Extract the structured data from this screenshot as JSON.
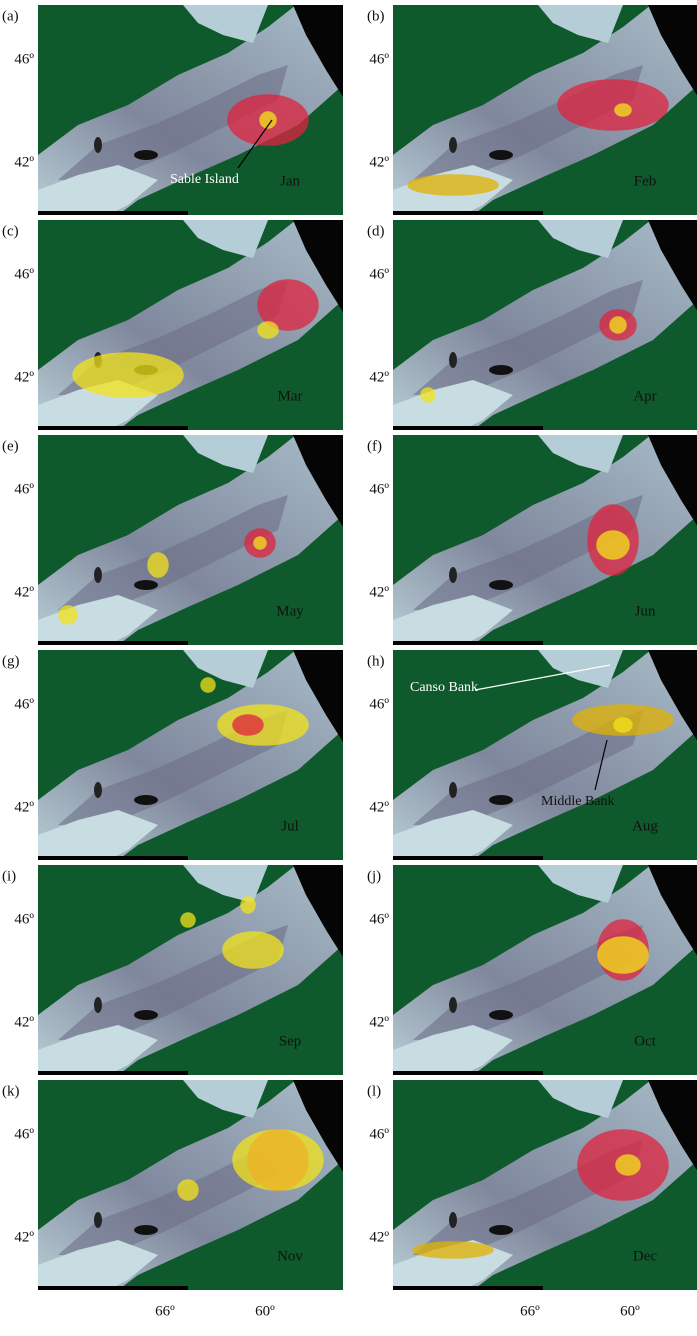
{
  "panels": [
    {
      "label": "(a)",
      "month": "Jan"
    },
    {
      "label": "(b)",
      "month": "Feb"
    },
    {
      "label": "(c)",
      "month": "Mar"
    },
    {
      "label": "(d)",
      "month": "Apr"
    },
    {
      "label": "(e)",
      "month": "May"
    },
    {
      "label": "(f)",
      "month": "Jun"
    },
    {
      "label": "(g)",
      "month": "Jul"
    },
    {
      "label": "(h)",
      "month": "Aug"
    },
    {
      "label": "(i)",
      "month": "Sep"
    },
    {
      "label": "(j)",
      "month": "Oct"
    },
    {
      "label": "(k)",
      "month": "Nov"
    },
    {
      "label": "(l)",
      "month": "Dec"
    }
  ],
  "y_ticks": [
    "46º",
    "42º"
  ],
  "x_ticks": [
    "66º",
    "60º"
  ],
  "annotations": {
    "sable_island": "Sable Island",
    "canso_bank": "Canso Bank",
    "middle_bank": "Middle Bank"
  }
}
